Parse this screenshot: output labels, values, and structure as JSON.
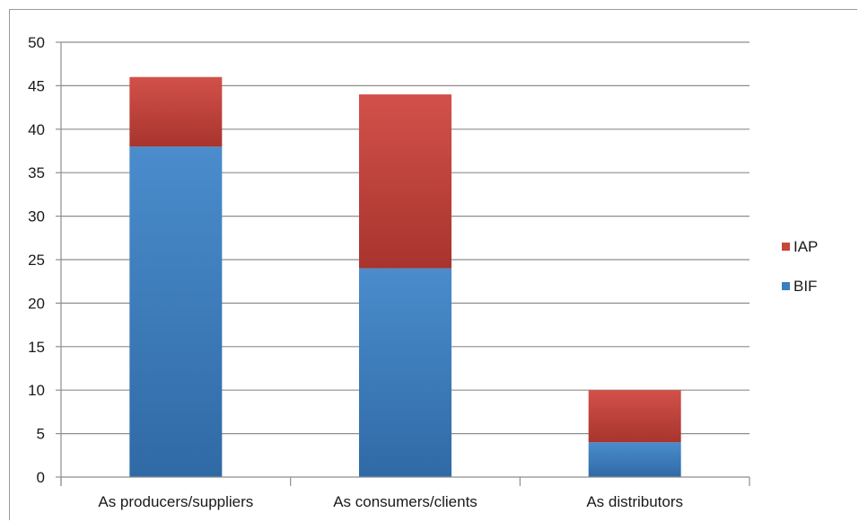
{
  "chart_data": {
    "type": "bar",
    "stacked": true,
    "categories": [
      "As producers/suppliers",
      "As consumers/clients",
      "As distributors"
    ],
    "series": [
      {
        "name": "BIF",
        "values": [
          38,
          24,
          4
        ],
        "color": "#3d7dc0"
      },
      {
        "name": "IAP",
        "values": [
          8,
          20,
          6
        ],
        "color": "#c9453e"
      }
    ],
    "title": "",
    "xlabel": "",
    "ylabel": "",
    "ylim": [
      0,
      50
    ],
    "yticks": [
      0,
      5,
      10,
      15,
      20,
      25,
      30,
      35,
      40,
      45,
      50
    ],
    "grid": true,
    "legend": {
      "position": "right",
      "order": [
        "IAP",
        "BIF"
      ]
    }
  }
}
